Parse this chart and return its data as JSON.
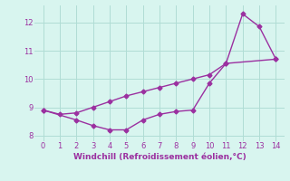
{
  "line1_x": [
    0,
    1,
    2,
    3,
    4,
    5,
    6,
    7,
    8,
    9,
    10,
    11,
    14
  ],
  "line1_y": [
    8.9,
    8.75,
    8.8,
    9.0,
    9.2,
    9.4,
    9.55,
    9.7,
    9.85,
    10.0,
    10.15,
    10.55,
    10.7
  ],
  "line2_x": [
    0,
    2,
    3,
    4,
    5,
    6,
    7,
    8,
    9,
    10,
    11,
    12,
    13,
    14
  ],
  "line2_y": [
    8.9,
    8.55,
    8.35,
    8.2,
    8.2,
    8.55,
    8.75,
    8.85,
    8.9,
    9.85,
    10.55,
    12.3,
    11.85,
    10.7
  ],
  "line_color": "#9b30a0",
  "bg_color": "#d8f5ef",
  "grid_color": "#b0ddd5",
  "xlabel": "Windchill (Refroidissement éolien,°C)",
  "xlabel_color": "#9b30a0",
  "tick_color": "#9b30a0",
  "xlim": [
    -0.5,
    14.5
  ],
  "ylim": [
    7.8,
    12.6
  ],
  "xticks": [
    0,
    1,
    2,
    3,
    4,
    5,
    6,
    7,
    8,
    9,
    10,
    11,
    12,
    13,
    14
  ],
  "yticks": [
    8,
    9,
    10,
    11,
    12
  ],
  "marker": "D",
  "markersize": 2.5,
  "linewidth": 1.0
}
